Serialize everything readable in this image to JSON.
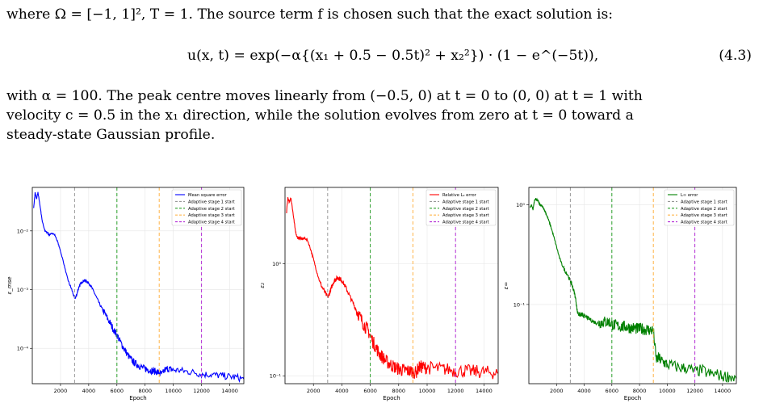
{
  "text": {
    "line1": "where Ω = [−1, 1]², T = 1. The source term f is chosen such that the exact solution is:",
    "equation": "u(x, t) = exp(−α{(x₁ + 0.5 − 0.5t)² + x₂²}) · (1 − e^(−5t)),",
    "equation_number": "(4.3)",
    "para_line1": "with α = 100. The peak centre moves linearly from (−0.5, 0) at t = 0 to (0, 0) at t = 1 with",
    "para_line2": "velocity c = 0.5 in the x₁ direction, while the solution evolves from zero at t = 0 toward a",
    "para_line3": "steady-state Gaussian profile."
  },
  "chart_data": [
    {
      "type": "line",
      "xlabel": "Epoch",
      "ylabel": "ε_mse",
      "yscale": "log",
      "xlim": [
        0,
        15000
      ],
      "ylim": [
        2.5e-05,
        0.055
      ],
      "xticks": [
        2000,
        4000,
        6000,
        8000,
        10000,
        12000,
        14000
      ],
      "xtick_labels": [
        "2000",
        "4000",
        "6000",
        "8000",
        "10000",
        "12000",
        "14000"
      ],
      "yticks": [
        0.01,
        0.001,
        0.0001
      ],
      "ytick_labels": [
        "10⁻²",
        "10⁻³",
        "10⁻⁴"
      ],
      "grid": true,
      "legend_position": "top-right",
      "color": "#0000ff",
      "series": [
        {
          "name": "Mean square error",
          "x": [
            100,
            200,
            300,
            400,
            500,
            600,
            700,
            800,
            900,
            1000,
            1100,
            1200,
            1300,
            1400,
            1600,
            1800,
            2000,
            2200,
            2400,
            2600,
            2800,
            3000,
            3100,
            3200,
            3300,
            3400,
            3500,
            3600,
            3700,
            3800,
            3900,
            4000,
            4200,
            4400,
            4600,
            4800,
            5000,
            5200,
            5400,
            5600,
            5800,
            6000,
            6200,
            6400,
            6600,
            6800,
            7000,
            7200,
            7400,
            7600,
            7800,
            8000,
            8200,
            8400,
            8600,
            8800,
            9000,
            9200,
            9400,
            9600,
            9800,
            10000,
            10500,
            11000,
            11500,
            12000,
            12500,
            13000,
            13500,
            14000,
            14500,
            15000
          ],
          "y": [
            0.025,
            0.045,
            0.035,
            0.045,
            0.032,
            0.022,
            0.015,
            0.012,
            0.01,
            0.0095,
            0.0092,
            0.0085,
            0.0088,
            0.0092,
            0.0085,
            0.0065,
            0.0045,
            0.003,
            0.0019,
            0.0013,
            0.001,
            0.0007,
            0.00075,
            0.0009,
            0.0011,
            0.00125,
            0.0013,
            0.0014,
            0.00143,
            0.0014,
            0.00135,
            0.0013,
            0.0011,
            0.00088,
            0.0007,
            0.00055,
            0.00045,
            0.00037,
            0.0003,
            0.00025,
            0.0002,
            0.00017,
            0.000135,
            0.00011,
            9e-05,
            7.5e-05,
            6.5e-05,
            5.8e-05,
            5.3e-05,
            5e-05,
            4.7e-05,
            4.5e-05,
            4.3e-05,
            4.2e-05,
            4.1e-05,
            4e-05,
            3.8e-05,
            3.6e-05,
            4.3e-05,
            4.5e-05,
            4.4e-05,
            4.3e-05,
            4.2e-05,
            4e-05,
            3.9e-05,
            3.6e-05,
            3.6e-05,
            3.5e-05,
            3.4e-05,
            3.3e-05,
            3.2e-05,
            3e-05
          ]
        }
      ],
      "stages": [
        {
          "name": "Adaptive stage 1 start",
          "x": 3000,
          "color": "#999999"
        },
        {
          "name": "Adaptive stage 2 start",
          "x": 6000,
          "color": "#2ca02c"
        },
        {
          "name": "Adaptive stage 3 start",
          "x": 9000,
          "color": "#ffb347"
        },
        {
          "name": "Adaptive stage 4 start",
          "x": 12000,
          "color": "#b52fd6"
        }
      ]
    },
    {
      "type": "line",
      "xlabel": "Epoch",
      "ylabel": "ε₂",
      "yscale": "log",
      "xlim": [
        0,
        15000
      ],
      "ylim": [
        0.085,
        4.8
      ],
      "xticks": [
        2000,
        4000,
        6000,
        8000,
        10000,
        12000,
        14000
      ],
      "xtick_labels": [
        "2000",
        "4000",
        "6000",
        "8000",
        "10000",
        "12000",
        "14000"
      ],
      "yticks": [
        1,
        0.1
      ],
      "ytick_labels": [
        "10⁰",
        "10⁻¹"
      ],
      "grid": true,
      "legend_position": "top-right",
      "color": "#ff0000",
      "series": [
        {
          "name": "Relative L₂ error",
          "x": [
            100,
            200,
            300,
            400,
            500,
            600,
            700,
            800,
            900,
            1000,
            1100,
            1200,
            1300,
            1400,
            1600,
            1800,
            2000,
            2200,
            2400,
            2600,
            2800,
            3000,
            3100,
            3200,
            3300,
            3400,
            3500,
            3600,
            3700,
            3800,
            3900,
            4000,
            4200,
            4400,
            4600,
            4800,
            5000,
            5200,
            5400,
            5600,
            5800,
            6000,
            6200,
            6400,
            6600,
            6800,
            7000,
            7200,
            7400,
            7600,
            7800,
            8000,
            8200,
            8400,
            8600,
            8800,
            9000,
            9200,
            9400,
            9600,
            9800,
            10000,
            10500,
            11000,
            11500,
            12000,
            12500,
            13000,
            13500,
            14000,
            14500,
            15000
          ],
          "y": [
            2.8,
            3.9,
            3.5,
            3.9,
            3.3,
            2.6,
            2.1,
            1.8,
            1.7,
            1.7,
            1.7,
            1.65,
            1.67,
            1.7,
            1.6,
            1.35,
            1.1,
            0.88,
            0.72,
            0.62,
            0.56,
            0.5,
            0.53,
            0.58,
            0.63,
            0.68,
            0.71,
            0.73,
            0.75,
            0.74,
            0.73,
            0.71,
            0.64,
            0.57,
            0.5,
            0.44,
            0.39,
            0.35,
            0.31,
            0.28,
            0.26,
            0.23,
            0.2,
            0.18,
            0.16,
            0.15,
            0.14,
            0.132,
            0.127,
            0.122,
            0.118,
            0.115,
            0.113,
            0.112,
            0.111,
            0.11,
            0.109,
            0.106,
            0.118,
            0.12,
            0.119,
            0.118,
            0.117,
            0.115,
            0.114,
            0.11,
            0.111,
            0.11,
            0.109,
            0.108,
            0.107,
            0.105
          ]
        }
      ],
      "stages": [
        {
          "name": "Adaptive stage 1 start",
          "x": 3000,
          "color": "#999999"
        },
        {
          "name": "Adaptive stage 2 start",
          "x": 6000,
          "color": "#2ca02c"
        },
        {
          "name": "Adaptive stage 3 start",
          "x": 9000,
          "color": "#ffb347"
        },
        {
          "name": "Adaptive stage 4 start",
          "x": 12000,
          "color": "#b52fd6"
        }
      ]
    },
    {
      "type": "line",
      "xlabel": "Epoch",
      "ylabel": "ε∞",
      "yscale": "log",
      "xlim": [
        0,
        15000
      ],
      "ylim": [
        0.016,
        1.5
      ],
      "xticks": [
        2000,
        4000,
        6000,
        8000,
        10000,
        12000,
        14000
      ],
      "xtick_labels": [
        "2000",
        "4000",
        "6000",
        "8000",
        "10000",
        "12000",
        "14000"
      ],
      "yticks": [
        1,
        0.1
      ],
      "ytick_labels": [
        "10⁰",
        "10⁻¹"
      ],
      "grid": true,
      "legend_position": "top-right",
      "color": "#008000",
      "series": [
        {
          "name": "L∞ error",
          "x": [
            100,
            200,
            300,
            400,
            500,
            600,
            700,
            800,
            900,
            1000,
            1100,
            1200,
            1300,
            1400,
            1600,
            1800,
            2000,
            2200,
            2400,
            2600,
            2800,
            3000,
            3100,
            3200,
            3300,
            3400,
            3500,
            3600,
            3700,
            3800,
            3900,
            4000,
            4200,
            4400,
            4600,
            4800,
            5000,
            5200,
            5400,
            5600,
            5800,
            6000,
            6200,
            6400,
            6600,
            6800,
            7000,
            7200,
            7400,
            7600,
            7800,
            8000,
            8200,
            8400,
            8600,
            8800,
            9000,
            9200,
            9400,
            9600,
            9800,
            10000,
            10500,
            11000,
            11500,
            12000,
            12500,
            13000,
            13500,
            14000,
            14500,
            15000
          ],
          "y": [
            0.95,
            1.0,
            0.9,
            1.1,
            1.15,
            1.12,
            1.08,
            1.0,
            0.98,
            0.95,
            0.9,
            0.85,
            0.78,
            0.72,
            0.6,
            0.48,
            0.38,
            0.3,
            0.25,
            0.22,
            0.2,
            0.17,
            0.16,
            0.145,
            0.13,
            0.11,
            0.085,
            0.08,
            0.078,
            0.079,
            0.078,
            0.076,
            0.074,
            0.071,
            0.068,
            0.066,
            0.065,
            0.066,
            0.067,
            0.067,
            0.067,
            0.063,
            0.062,
            0.061,
            0.06,
            0.06,
            0.06,
            0.059,
            0.058,
            0.058,
            0.057,
            0.057,
            0.057,
            0.056,
            0.056,
            0.055,
            0.055,
            0.028,
            0.029,
            0.027,
            0.026,
            0.025,
            0.024,
            0.023,
            0.023,
            0.021,
            0.022,
            0.02,
            0.02,
            0.019,
            0.019,
            0.018
          ]
        }
      ],
      "stages": [
        {
          "name": "Adaptive stage 1 start",
          "x": 3000,
          "color": "#999999"
        },
        {
          "name": "Adaptive stage 2 start",
          "x": 6000,
          "color": "#2ca02c"
        },
        {
          "name": "Adaptive stage 3 start",
          "x": 9000,
          "color": "#ffb347"
        },
        {
          "name": "Adaptive stage 4 start",
          "x": 12000,
          "color": "#b52fd6"
        }
      ]
    }
  ]
}
